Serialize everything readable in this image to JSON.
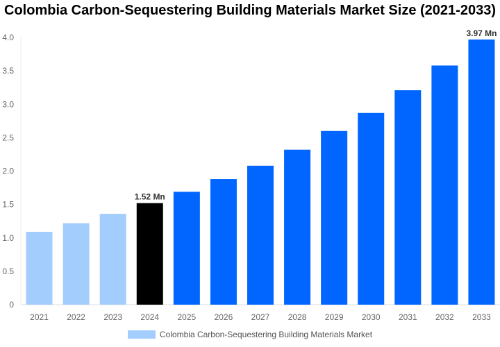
{
  "chart_data": {
    "type": "bar",
    "title": "Colombia Carbon-Sequestering Building Materials Market Size (2021-2033)",
    "categories": [
      "2021",
      "2022",
      "2023",
      "2024",
      "2025",
      "2026",
      "2027",
      "2028",
      "2029",
      "2030",
      "2031",
      "2032",
      "2033"
    ],
    "series": [
      {
        "name": "Colombia Carbon-Sequestering Building Materials Market",
        "values": [
          1.09,
          1.22,
          1.36,
          1.52,
          1.69,
          1.88,
          2.08,
          2.32,
          2.6,
          2.87,
          3.21,
          3.58,
          3.97
        ]
      }
    ],
    "bar_colors": [
      "#a3cdfd",
      "#a3cdfd",
      "#a3cdfd",
      "#000000",
      "#0066ff",
      "#0066ff",
      "#0066ff",
      "#0066ff",
      "#0066ff",
      "#0066ff",
      "#0066ff",
      "#0066ff",
      "#0066ff"
    ],
    "data_labels": [
      {
        "index": 3,
        "text": "1.52 Mn"
      },
      {
        "index": 12,
        "text": "3.97 Mn"
      }
    ],
    "yticks": [
      "0",
      "0.5",
      "1.0",
      "1.5",
      "2.0",
      "2.5",
      "3.0",
      "3.5",
      "4.0"
    ],
    "ylim": [
      0,
      4.0
    ],
    "grid": false,
    "legend_position": "bottom",
    "legend_color": "#a3cdfd"
  }
}
